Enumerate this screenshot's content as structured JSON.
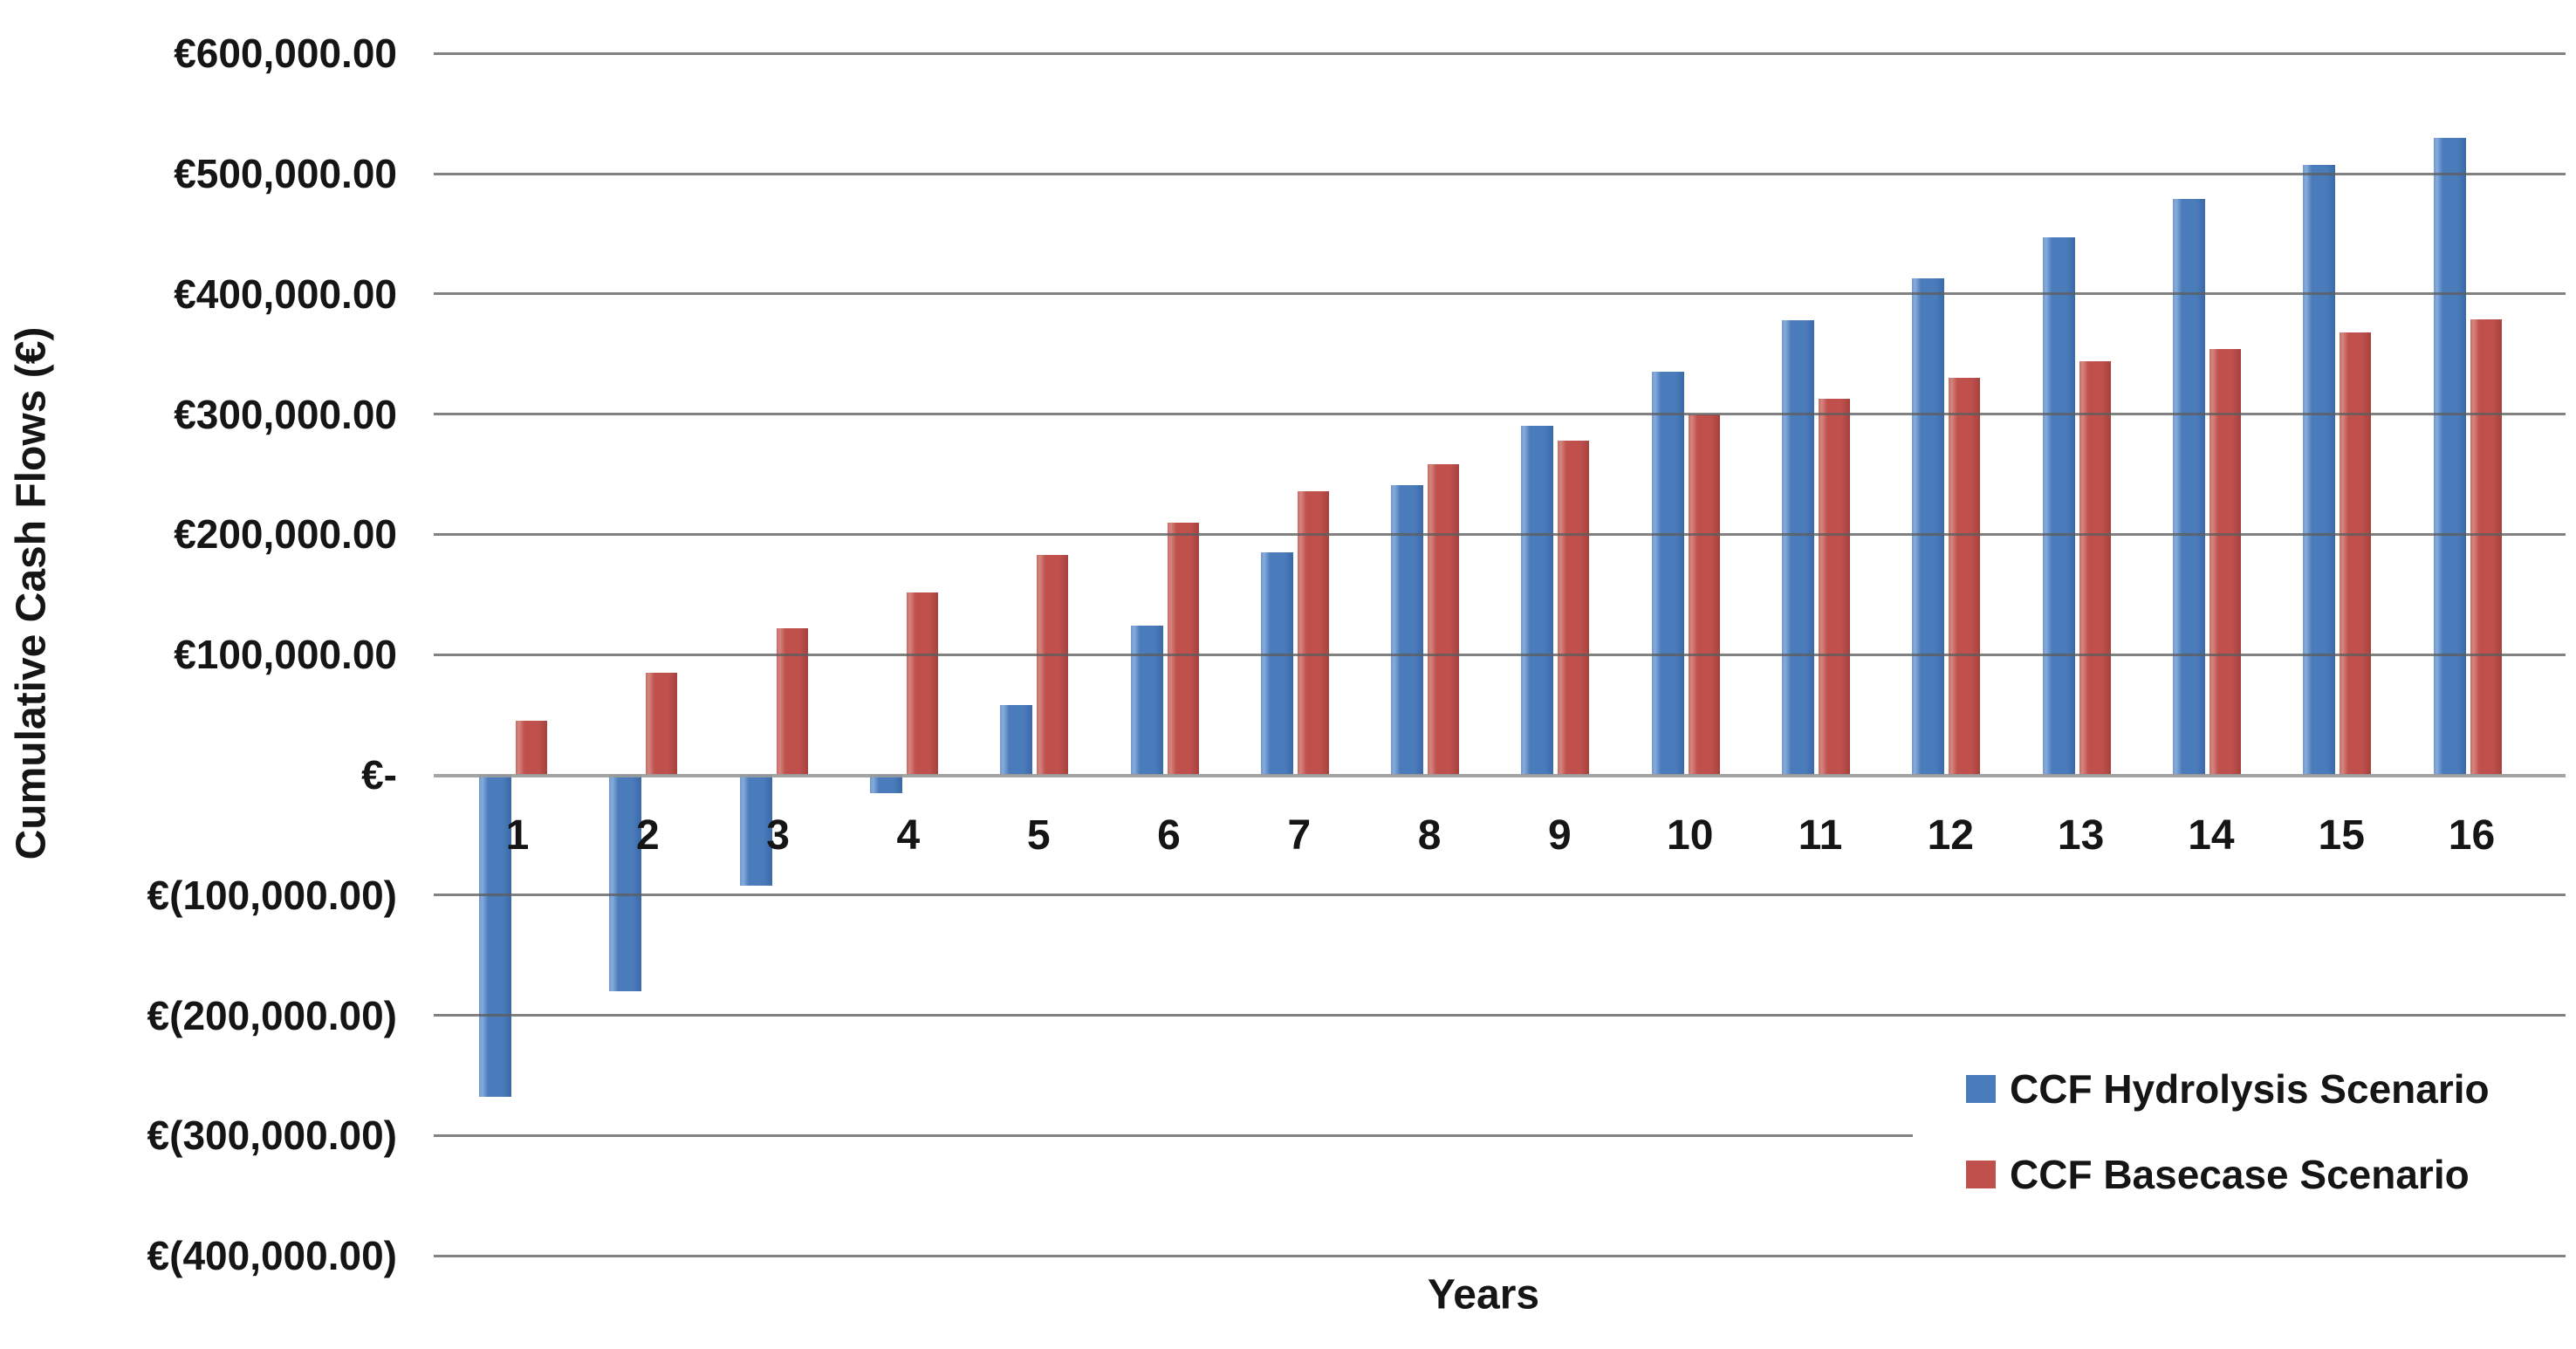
{
  "chart_data": {
    "type": "bar",
    "title": "",
    "xlabel": "Years",
    "ylabel": "Cumulative Cash Flows (€)",
    "categories": [
      "1",
      "2",
      "3",
      "4",
      "5",
      "6",
      "7",
      "8",
      "9",
      "10",
      "11",
      "12",
      "13",
      "14",
      "15",
      "16"
    ],
    "series": [
      {
        "name": "CCF Hydrolysis Scenario",
        "color": "#4a7cbc",
        "values": [
          -268000,
          -180000,
          -92000,
          -15000,
          58000,
          124000,
          185000,
          241000,
          290000,
          335000,
          378000,
          413000,
          447000,
          479000,
          507000,
          530000
        ]
      },
      {
        "name": "CCF Basecase Scenario",
        "color": "#bf504c",
        "values": [
          45000,
          85000,
          122000,
          152000,
          183000,
          210000,
          236000,
          258000,
          278000,
          300000,
          313000,
          330000,
          344000,
          354000,
          368000,
          379000
        ]
      }
    ],
    "ylim": [
      -400000,
      600000
    ],
    "ytick_step": 100000,
    "yticks": [
      600000,
      500000,
      400000,
      300000,
      200000,
      100000,
      0,
      -100000,
      -200000,
      -300000,
      -400000
    ],
    "ytick_labels": [
      "€600,000.00",
      "€500,000.00",
      "€400,000.00",
      "€300,000.00",
      "€200,000.00",
      "€100,000.00",
      "€-",
      "€(100,000.00)",
      "€(200,000.00)",
      "€(300,000.00)",
      "€(400,000.00)"
    ],
    "grid": true,
    "legend_position": "bottom-right"
  }
}
